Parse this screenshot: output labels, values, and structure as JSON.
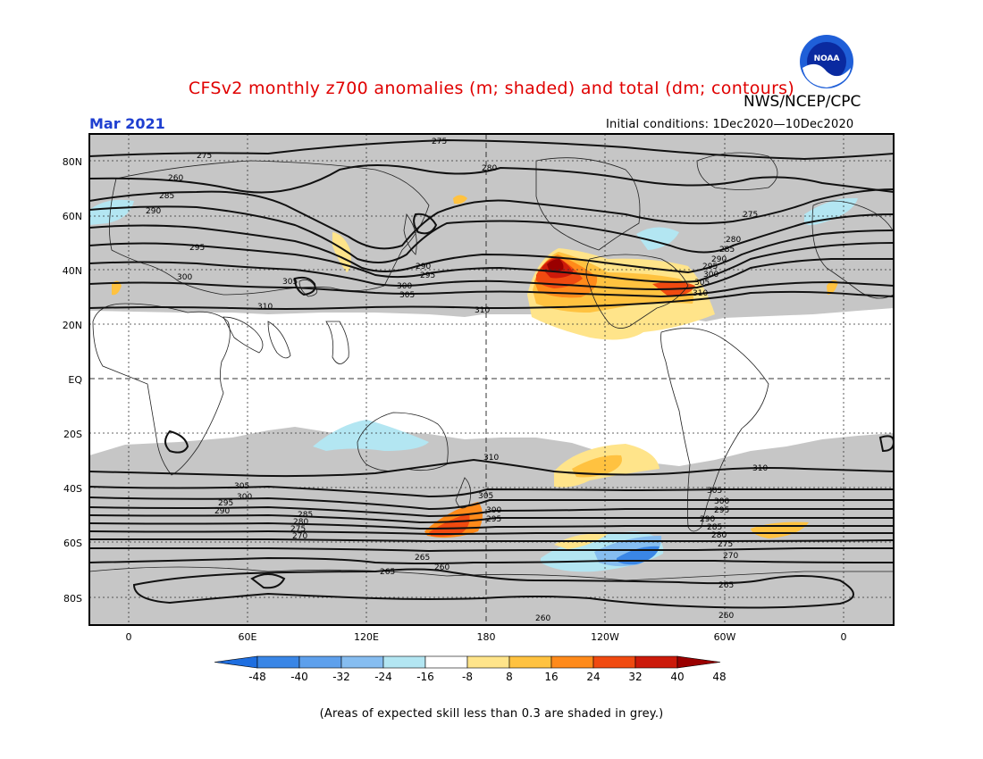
{
  "header": {
    "title": "CFSv2 monthly z700 anomalies (m; shaded) and total (dm; contours)",
    "agency": "NWS/NCEP/CPC",
    "period": "Mar 2021",
    "initial_conditions": "Initial conditions: 1Dec2020—10Dec2020",
    "logo_text": "NOAA"
  },
  "axes": {
    "lat_labels": [
      "80N",
      "60N",
      "40N",
      "20N",
      "EQ",
      "20S",
      "40S",
      "60S",
      "80S"
    ],
    "lon_labels": [
      "0",
      "60E",
      "120E",
      "180",
      "120W",
      "60W",
      "0"
    ]
  },
  "colorbar": {
    "labels": [
      "-48",
      "-40",
      "-32",
      "-24",
      "-16",
      "-8",
      "8",
      "16",
      "24",
      "32",
      "40",
      "48"
    ],
    "colors": [
      "#1e6ee0",
      "#3a86e6",
      "#5ea0ec",
      "#86bdf0",
      "#b3e6f2",
      "#ffffff",
      "#ffe48a",
      "#ffc240",
      "#ff8a1a",
      "#f04a10",
      "#cc1a0a",
      "#9a0000"
    ]
  },
  "contour_labels": {
    "north": [
      "275",
      "280",
      "260",
      "285",
      "290",
      "295",
      "300",
      "305",
      "310",
      "290",
      "295",
      "300",
      "305",
      "310",
      "275",
      "280",
      "285",
      "290",
      "295",
      "300",
      "305",
      "310",
      "275"
    ],
    "south": [
      "310",
      "305",
      "300",
      "295",
      "290",
      "285",
      "280",
      "275",
      "270",
      "265",
      "260",
      "265",
      "305",
      "300",
      "295",
      "310",
      "305",
      "300",
      "295",
      "290",
      "285",
      "280",
      "275",
      "270",
      "265",
      "260",
      "260"
    ]
  },
  "legend": {
    "grey_note": "(Areas of expected skill less than 0.3 are shaded in grey.)"
  }
}
